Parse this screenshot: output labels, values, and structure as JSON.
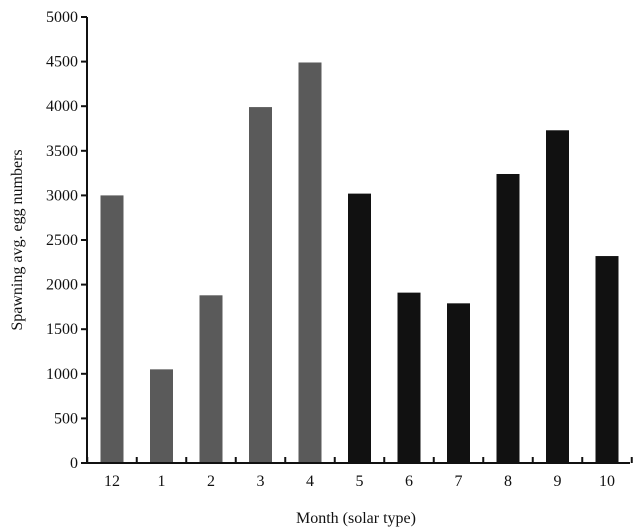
{
  "chart_data": {
    "type": "bar",
    "title": "",
    "xlabel": "Month (solar type)",
    "ylabel": "Spawning avg. egg numbers",
    "categories": [
      "12",
      "1",
      "2",
      "3",
      "4",
      "5",
      "6",
      "7",
      "8",
      "9",
      "10"
    ],
    "values": [
      3000,
      1050,
      1880,
      3990,
      4490,
      3020,
      1910,
      1790,
      3240,
      3730,
      2320
    ],
    "ylim": [
      0,
      5000
    ],
    "yticks": [
      0,
      500,
      1000,
      1500,
      2000,
      2500,
      3000,
      3500,
      4000,
      4500,
      5000
    ],
    "grid": false,
    "legend": "none",
    "colors": {
      "light_bar": "#5a5a5a",
      "dark_bar": "#111111",
      "axis": "#111111"
    },
    "dark_from_index": 5
  }
}
